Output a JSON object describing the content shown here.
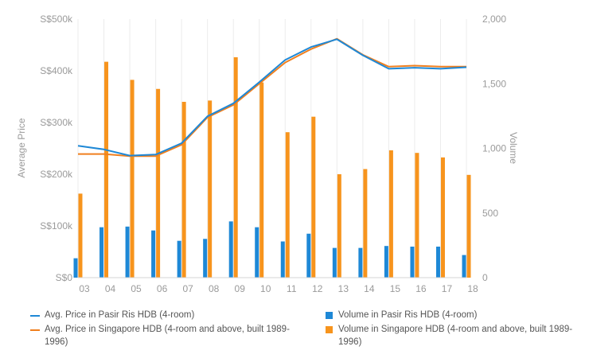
{
  "chart_data": {
    "type": "bar",
    "categories": [
      "03",
      "04",
      "05",
      "06",
      "07",
      "08",
      "09",
      "10",
      "11",
      "12",
      "13",
      "14",
      "15",
      "16",
      "17",
      "18"
    ],
    "y_left": {
      "label": "Average Price",
      "ticks": [
        "S$0",
        "S$100k",
        "S$200k",
        "S$300k",
        "S$400k",
        "S$500k"
      ],
      "range": [
        0,
        500000
      ]
    },
    "y_right": {
      "label": "Volume",
      "ticks": [
        "0",
        "500",
        "1,000",
        "1,500",
        "2,000"
      ],
      "range": [
        0,
        2000
      ]
    },
    "series": [
      {
        "name": "Avg. Price in Pasir Ris HDB (4-room)",
        "kind": "line",
        "axis": "left",
        "color": "#1e88d6",
        "values": [
          255000,
          248000,
          236000,
          238000,
          260000,
          312000,
          337000,
          378000,
          421000,
          446000,
          461000,
          430000,
          404000,
          406000,
          404000,
          407000
        ]
      },
      {
        "name": "Avg. Price in Singapore HDB (4-room and above, built 1989-1996)",
        "kind": "line",
        "axis": "left",
        "color": "#f07f1e",
        "values": [
          239000,
          239000,
          235000,
          235000,
          257000,
          310000,
          334000,
          375000,
          416000,
          442000,
          462000,
          431000,
          408000,
          410000,
          408000,
          408000
        ]
      },
      {
        "name": "Volume in Pasir Ris HDB (4-room)",
        "kind": "bar",
        "axis": "right",
        "color": "#1e88d6",
        "values": [
          150,
          390,
          395,
          365,
          285,
          300,
          435,
          390,
          280,
          340,
          230,
          230,
          245,
          240,
          240,
          175
        ]
      },
      {
        "name": "Volume in Singapore HDB (4-room and above, built 1989-1996)",
        "kind": "bar",
        "axis": "right",
        "color": "#f7941d",
        "values": [
          650,
          1670,
          1530,
          1460,
          1360,
          1370,
          1705,
          1510,
          1125,
          1245,
          800,
          840,
          985,
          965,
          930,
          795
        ]
      }
    ],
    "grid": "vertical",
    "legend_position": "bottom"
  }
}
